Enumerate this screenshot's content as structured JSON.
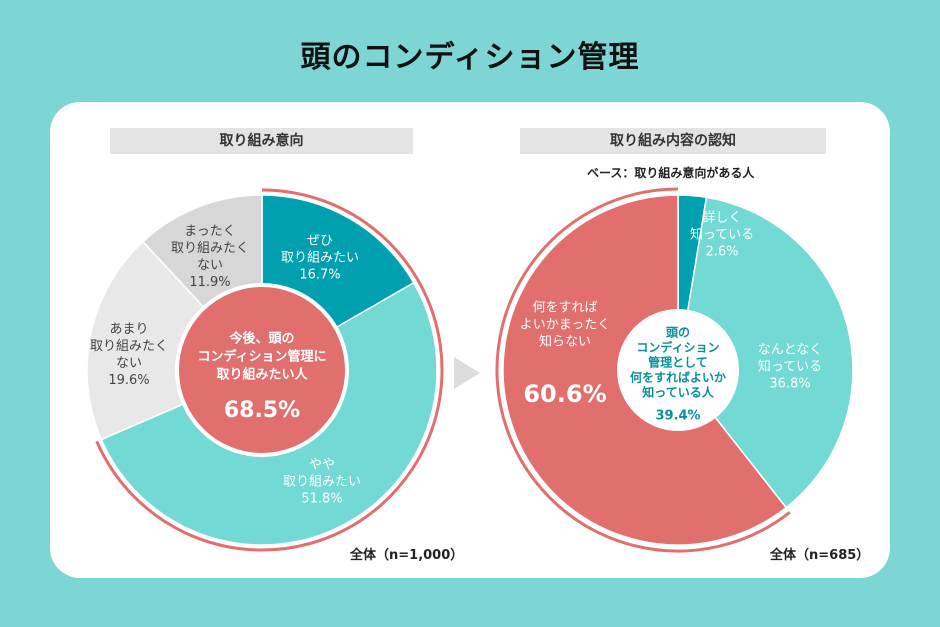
{
  "title": "頭のコンディション管理",
  "colors": {
    "background": "#7dd6d3",
    "coral": "#e06f6d",
    "dark_teal": "#00a0b0",
    "light_teal": "#72d9d4",
    "light_gray": "#e8e8e8",
    "mid_gray": "#d7d7d7"
  },
  "left": {
    "header": "取り組み意向",
    "base": "全体（n=1,000）",
    "center_text": [
      "今後、頭の",
      "コンディション管理に",
      "取り組みたい人"
    ],
    "center_value": "68.5%"
  },
  "right": {
    "header": "取り組み内容の認知",
    "base_note": "ベース：取り組み意向がある人",
    "base": "全体（n=685）",
    "center_text": [
      "頭の",
      "コンディション",
      "管理として",
      "何をすればよいか",
      "知っている人"
    ],
    "center_value": "39.4%"
  },
  "chart_data": [
    {
      "type": "pie",
      "title": "取り組み意向",
      "base": "全体（n=1,000）",
      "slices": [
        {
          "name": "ぜひ取り組みたい",
          "label_lines": [
            "ぜひ",
            "取り組みたい"
          ],
          "value": 16.7,
          "value_text": "16.7%",
          "color": "#00a0b0",
          "text_color": "#ffffff"
        },
        {
          "name": "やや取り組みたい",
          "label_lines": [
            "やや",
            "取り組みたい"
          ],
          "value": 51.8,
          "value_text": "51.8%",
          "color": "#72d9d4",
          "text_color": "#ffffff"
        },
        {
          "name": "あまり取り組みたくない",
          "label_lines": [
            "あまり",
            "取り組みたく",
            "ない"
          ],
          "value": 19.6,
          "value_text": "19.6%",
          "color": "#e8e8e8",
          "text_color": "#444444"
        },
        {
          "name": "まったく取り組みたくない",
          "label_lines": [
            "まったく",
            "取り組みたく",
            "ない"
          ],
          "value": 11.9,
          "value_text": "11.9%",
          "color": "#d7d7d7",
          "text_color": "#444444"
        }
      ],
      "highlight": {
        "label": "今後、頭のコンディション管理に取り組みたい人",
        "value": 68.5,
        "value_text": "68.5%"
      }
    },
    {
      "type": "pie",
      "title": "取り組み内容の認知",
      "base": "全体（n=685）",
      "slices": [
        {
          "name": "詳しく知っている",
          "label_lines": [
            "詳しく",
            "知っている"
          ],
          "value": 2.6,
          "value_text": "2.6%",
          "color": "#00a0b0",
          "text_color": "#ffffff"
        },
        {
          "name": "なんとなく知っている",
          "label_lines": [
            "なんとなく",
            "知っている"
          ],
          "value": 36.8,
          "value_text": "36.8%",
          "color": "#72d9d4",
          "text_color": "#ffffff"
        },
        {
          "name": "何をすればよいかまったく知らない",
          "label_lines": [
            "何をすれば",
            "よいかまったく",
            "知らない"
          ],
          "value": 60.6,
          "value_text": "60.6%",
          "color": "#e06f6d",
          "text_color": "#ffffff"
        }
      ],
      "highlight": {
        "label": "頭のコンディション管理として何をすればよいか知っている人",
        "value": 39.4,
        "value_text": "39.4%"
      }
    }
  ]
}
